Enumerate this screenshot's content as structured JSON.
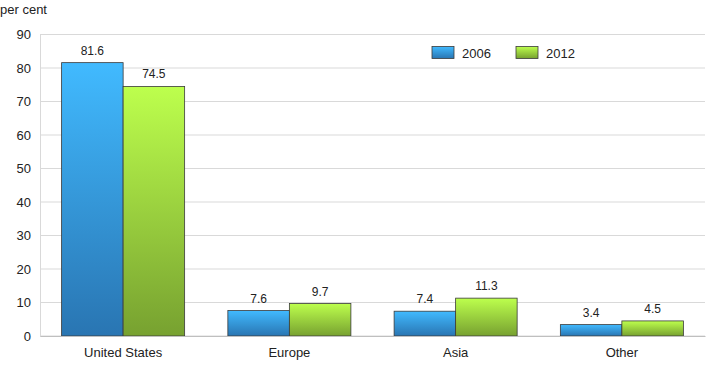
{
  "chart_data": {
    "type": "bar",
    "y_label": "per cent",
    "categories": [
      "United States",
      "Europe",
      "Asia",
      "Other"
    ],
    "series": [
      {
        "name": "2006",
        "color": "#3391dc",
        "values": [
          81.6,
          7.6,
          7.4,
          3.4
        ]
      },
      {
        "name": "2012",
        "color": "#93c83c",
        "values": [
          74.5,
          9.7,
          11.3,
          4.5
        ]
      }
    ],
    "ylim": [
      0,
      90
    ],
    "yticks": [
      0,
      10,
      20,
      30,
      40,
      50,
      60,
      70,
      80,
      90
    ],
    "grid": true,
    "legend": "top-right",
    "data_labels": true
  }
}
